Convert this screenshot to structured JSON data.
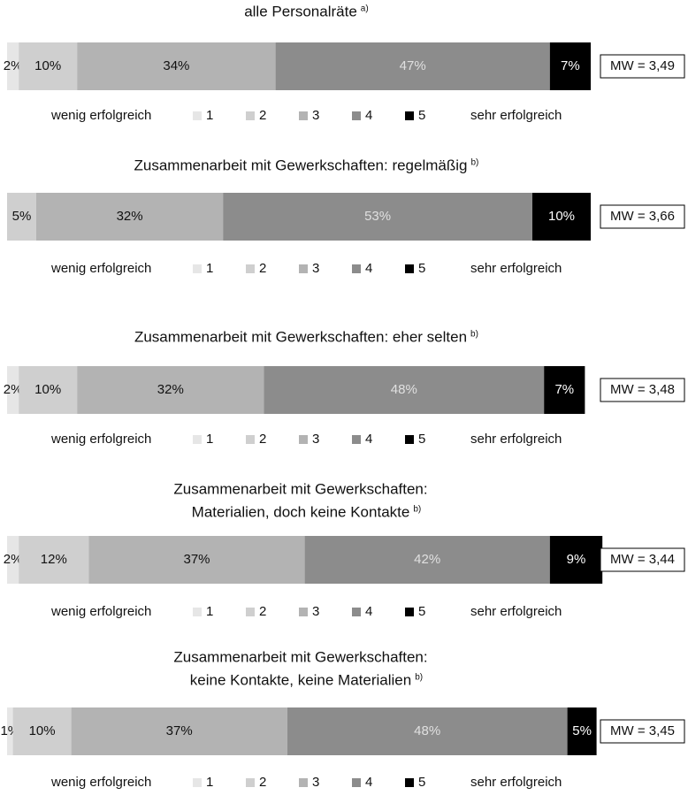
{
  "chart_data": [
    {
      "type": "bar",
      "orientation": "horizontal",
      "stacked": true,
      "title": [
        "alle Personalräte"
      ],
      "title_note": "a)",
      "categories": [
        "1",
        "2",
        "3",
        "4",
        "5"
      ],
      "values": [
        2,
        10,
        34,
        47,
        7
      ],
      "value_labels": [
        "2%",
        "10%",
        "34%",
        "47%",
        "7%"
      ],
      "colors": [
        "#e6e6e6",
        "#cfcfcf",
        "#b3b3b3",
        "#8c8c8c",
        "#000000"
      ],
      "xlim": [
        0,
        100
      ],
      "mean_label": "MW = 3,49",
      "legend_left": "wenig erfolgreich",
      "legend_right": "sehr erfolgreich"
    },
    {
      "type": "bar",
      "orientation": "horizontal",
      "stacked": true,
      "title": [
        "Zusammenarbeit mit Gewerkschaften: regelmäßig"
      ],
      "title_note": "b)",
      "categories": [
        "1",
        "2",
        "3",
        "4",
        "5"
      ],
      "values": [
        null,
        5,
        32,
        53,
        10
      ],
      "value_labels": [
        null,
        "5%",
        "32%",
        "53%",
        "10%"
      ],
      "colors": [
        "#e6e6e6",
        "#cfcfcf",
        "#b3b3b3",
        "#8c8c8c",
        "#000000"
      ],
      "xlim": [
        0,
        100
      ],
      "mean_label": "MW = 3,66",
      "legend_left": "wenig erfolgreich",
      "legend_right": "sehr erfolgreich"
    },
    {
      "type": "bar",
      "orientation": "horizontal",
      "stacked": true,
      "title": [
        "Zusammenarbeit mit Gewerkschaften: eher selten"
      ],
      "title_note": "b)",
      "categories": [
        "1",
        "2",
        "3",
        "4",
        "5"
      ],
      "values": [
        2,
        10,
        32,
        48,
        7
      ],
      "value_labels": [
        "2%",
        "10%",
        "32%",
        "48%",
        "7%"
      ],
      "colors": [
        "#e6e6e6",
        "#cfcfcf",
        "#b3b3b3",
        "#8c8c8c",
        "#000000"
      ],
      "xlim": [
        0,
        100
      ],
      "mean_label": "MW = 3,48",
      "legend_left": "wenig erfolgreich",
      "legend_right": "sehr erfolgreich"
    },
    {
      "type": "bar",
      "orientation": "horizontal",
      "stacked": true,
      "title": [
        "Zusammenarbeit mit Gewerkschaften:",
        "Materialien, doch keine Kontakte"
      ],
      "title_note": "b)",
      "categories": [
        "1",
        "2",
        "3",
        "4",
        "5"
      ],
      "values": [
        2,
        12,
        37,
        42,
        9
      ],
      "value_labels": [
        "2%",
        "12%",
        "37%",
        "42%",
        "9%"
      ],
      "colors": [
        "#e6e6e6",
        "#cfcfcf",
        "#b3b3b3",
        "#8c8c8c",
        "#000000"
      ],
      "xlim": [
        0,
        100
      ],
      "mean_label": "MW = 3,44",
      "legend_left": "wenig erfolgreich",
      "legend_right": "sehr erfolgreich"
    },
    {
      "type": "bar",
      "orientation": "horizontal",
      "stacked": true,
      "title": [
        "Zusammenarbeit mit Gewerkschaften:",
        "keine Kontakte, keine Materialien"
      ],
      "title_note": "b)",
      "categories": [
        "1",
        "2",
        "3",
        "4",
        "5"
      ],
      "values": [
        1,
        10,
        37,
        48,
        5
      ],
      "value_labels": [
        "1%",
        "10%",
        "37%",
        "48%",
        "5%"
      ],
      "colors": [
        "#e6e6e6",
        "#cfcfcf",
        "#b3b3b3",
        "#8c8c8c",
        "#000000"
      ],
      "xlim": [
        0,
        100
      ],
      "mean_label": "MW = 3,45",
      "legend_left": "wenig erfolgreich",
      "legend_right": "sehr erfolgreich"
    }
  ]
}
